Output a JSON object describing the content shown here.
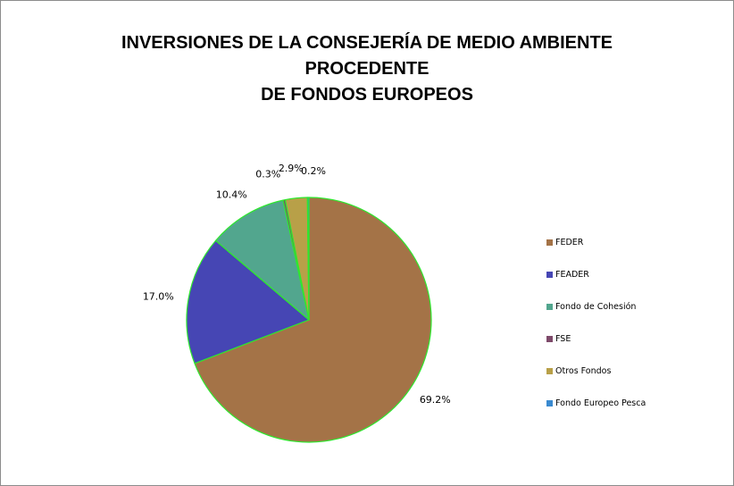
{
  "chart_data": {
    "type": "pie",
    "title": [
      "INVERSIONES DE LA CONSEJERÍA DE MEDIO AMBIENTE",
      "PROCEDENTE",
      "DE FONDOS EUROPEOS"
    ],
    "legend_position": "right",
    "slice_outline_color": "#2ee82e",
    "series": [
      {
        "name": "FEDER",
        "value": 69.2,
        "label": "69.2%",
        "color": "#a47347"
      },
      {
        "name": "FEADER",
        "value": 17.0,
        "label": "17.0%",
        "color": "#4646b4"
      },
      {
        "name": "Fondo de Cohesión",
        "value": 10.4,
        "label": "10.4%",
        "color": "#52a68e"
      },
      {
        "name": "FSE",
        "value": 0.3,
        "label": "0.3%",
        "color": "#7e4a6a"
      },
      {
        "name": "Otros Fondos",
        "value": 2.9,
        "label": "2.9%",
        "color": "#b8a048"
      },
      {
        "name": "Fondo Europeo Pesca",
        "value": 0.2,
        "label": "0.2%",
        "color": "#3a8ad0"
      }
    ]
  }
}
